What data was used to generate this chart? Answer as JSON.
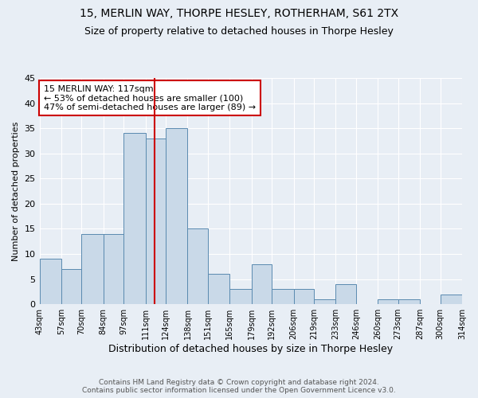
{
  "title": "15, MERLIN WAY, THORPE HESLEY, ROTHERHAM, S61 2TX",
  "subtitle": "Size of property relative to detached houses in Thorpe Hesley",
  "xlabel": "Distribution of detached houses by size in Thorpe Hesley",
  "ylabel": "Number of detached properties",
  "bar_edges": [
    43,
    57,
    70,
    84,
    97,
    111,
    124,
    138,
    151,
    165,
    179,
    192,
    206,
    219,
    233,
    246,
    260,
    273,
    287,
    300,
    314
  ],
  "bar_heights": [
    9,
    7,
    14,
    14,
    34,
    33,
    35,
    15,
    6,
    3,
    8,
    3,
    3,
    1,
    4,
    0,
    1,
    1,
    0,
    2
  ],
  "bar_color": "#c9d9e8",
  "bar_edge_color": "#5a8ab0",
  "property_line_x": 117,
  "annotation_text": "15 MERLIN WAY: 117sqm\n← 53% of detached houses are smaller (100)\n47% of semi-detached houses are larger (89) →",
  "annotation_box_color": "#ffffff",
  "annotation_box_edge": "#cc0000",
  "line_color": "#cc0000",
  "tick_labels": [
    "43sqm",
    "57sqm",
    "70sqm",
    "84sqm",
    "97sqm",
    "111sqm",
    "124sqm",
    "138sqm",
    "151sqm",
    "165sqm",
    "179sqm",
    "192sqm",
    "206sqm",
    "219sqm",
    "233sqm",
    "246sqm",
    "260sqm",
    "273sqm",
    "287sqm",
    "300sqm",
    "314sqm"
  ],
  "ylim": [
    0,
    45
  ],
  "yticks": [
    0,
    5,
    10,
    15,
    20,
    25,
    30,
    35,
    40,
    45
  ],
  "background_color": "#e8eef5",
  "plot_bg_color": "#e8eef5",
  "footer_line1": "Contains HM Land Registry data © Crown copyright and database right 2024.",
  "footer_line2": "Contains public sector information licensed under the Open Government Licence v3.0.",
  "title_fontsize": 10,
  "subtitle_fontsize": 9,
  "annotation_fontsize": 8,
  "ylabel_fontsize": 8,
  "xlabel_fontsize": 9
}
